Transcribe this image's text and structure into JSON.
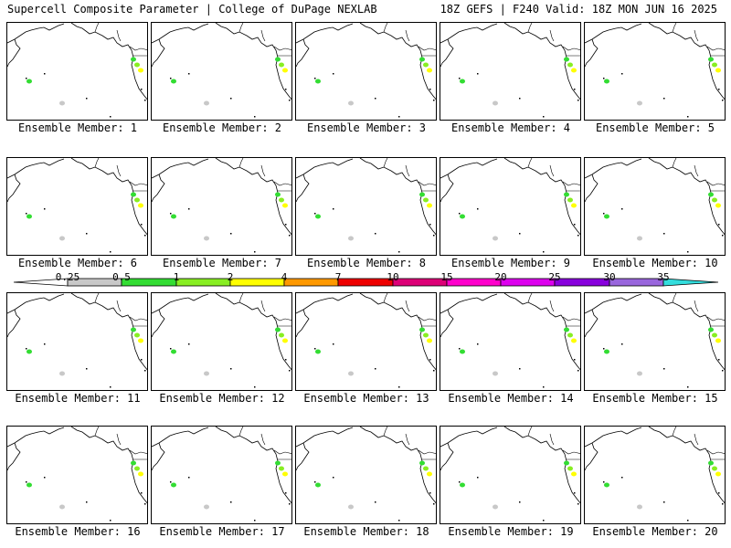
{
  "header": {
    "left": "Supercell Composite Parameter | College of DuPage NEXLAB",
    "right": "18Z GEFS | F240 Valid: 18Z MON JUN 16 2025"
  },
  "colorbar": {
    "levels": [
      {
        "label": "0.25",
        "color": "#c8c8c8"
      },
      {
        "label": "0.5",
        "color": "#33dd33"
      },
      {
        "label": "1",
        "color": "#88ee22"
      },
      {
        "label": "2",
        "color": "#ffff00"
      },
      {
        "label": "4",
        "color": "#ff9900"
      },
      {
        "label": "7",
        "color": "#ee0000"
      },
      {
        "label": "10",
        "color": "#dd0077"
      },
      {
        "label": "15",
        "color": "#ff00cc"
      },
      {
        "label": "20",
        "color": "#dd00ee"
      },
      {
        "label": "25",
        "color": "#8800dd"
      },
      {
        "label": "30",
        "color": "#9966dd"
      },
      {
        "label": "35",
        "color": "#33dddd"
      }
    ],
    "tick_labels": [
      "0.25",
      "0.5",
      "1",
      "2",
      "4",
      "7",
      "10",
      "15",
      "20",
      "25",
      "30",
      "35"
    ]
  },
  "panels": [
    {
      "label": "Ensemble Member: 1"
    },
    {
      "label": "Ensemble Member: 2"
    },
    {
      "label": "Ensemble Member: 3"
    },
    {
      "label": "Ensemble Member: 4"
    },
    {
      "label": "Ensemble Member: 5"
    },
    {
      "label": "Ensemble Member: 6"
    },
    {
      "label": "Ensemble Member: 7"
    },
    {
      "label": "Ensemble Member: 8"
    },
    {
      "label": "Ensemble Member: 9"
    },
    {
      "label": "Ensemble Member: 10"
    },
    {
      "label": "Ensemble Member: 11"
    },
    {
      "label": "Ensemble Member: 12"
    },
    {
      "label": "Ensemble Member: 13"
    },
    {
      "label": "Ensemble Member: 14"
    },
    {
      "label": "Ensemble Member: 15"
    },
    {
      "label": "Ensemble Member: 16"
    },
    {
      "label": "Ensemble Member: 17"
    },
    {
      "label": "Ensemble Member: 18"
    },
    {
      "label": "Ensemble Member: 19"
    },
    {
      "label": "Ensemble Member: 20"
    }
  ]
}
